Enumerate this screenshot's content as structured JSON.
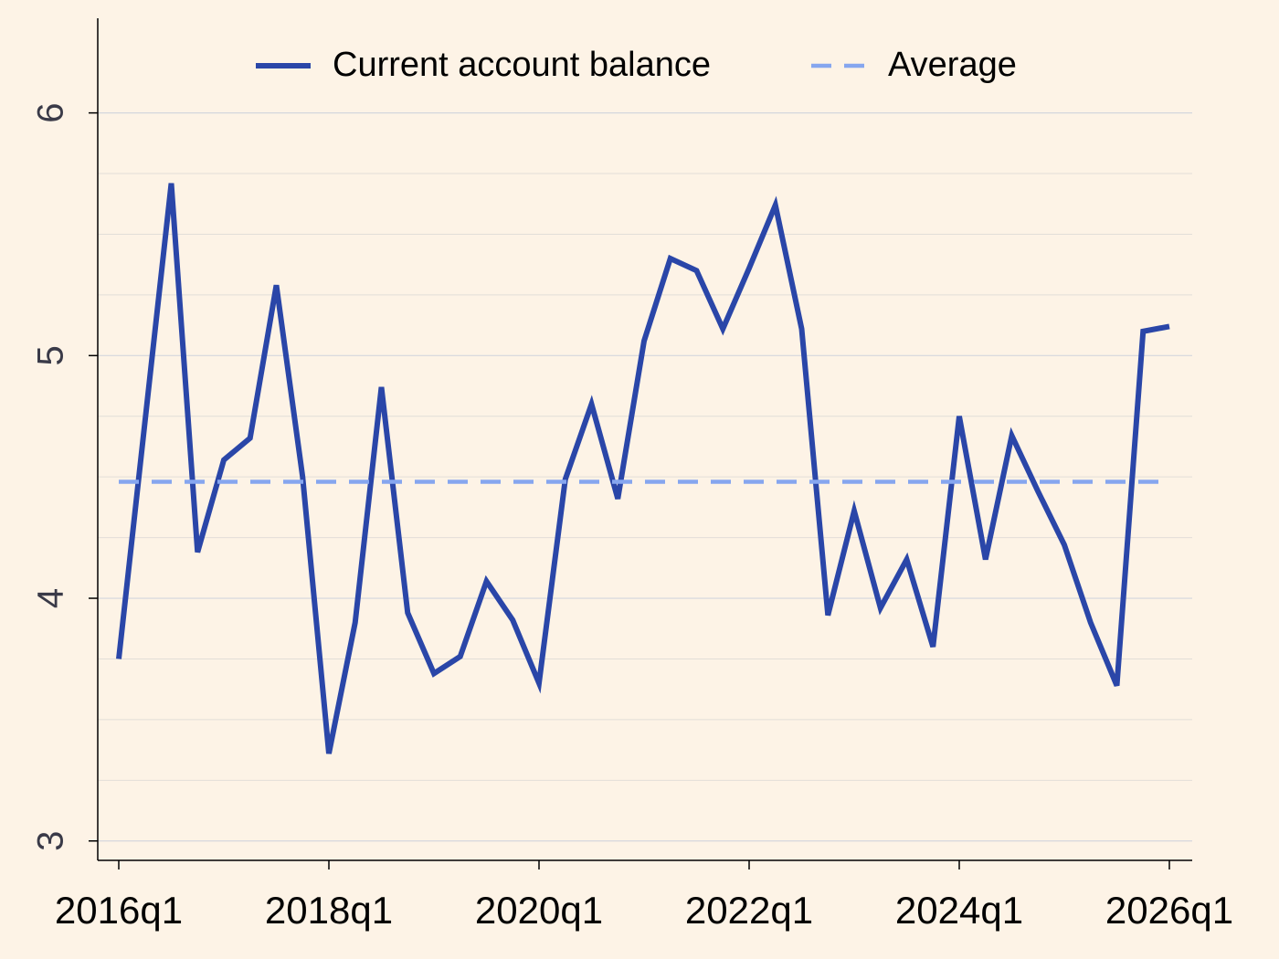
{
  "chart_data": {
    "type": "line",
    "x": [
      "2016q1",
      "2016q2",
      "2016q3",
      "2016q4",
      "2017q1",
      "2017q2",
      "2017q3",
      "2017q4",
      "2018q1",
      "2018q2",
      "2018q3",
      "2018q4",
      "2019q1",
      "2019q2",
      "2019q3",
      "2019q4",
      "2020q1",
      "2020q2",
      "2020q3",
      "2020q4",
      "2021q1",
      "2021q2",
      "2021q3",
      "2021q4",
      "2022q1",
      "2022q2",
      "2022q3",
      "2022q4",
      "2023q1",
      "2023q2",
      "2023q3",
      "2023q4",
      "2024q1",
      "2024q2",
      "2024q3",
      "2024q4",
      "2025q1",
      "2025q2",
      "2025q3",
      "2025q4",
      "2026q1"
    ],
    "series": [
      {
        "name": "Current account balance",
        "color": "#2a46a8",
        "values": [
          3.75,
          4.73,
          5.71,
          4.19,
          4.57,
          4.66,
          5.29,
          4.5,
          3.36,
          3.9,
          4.87,
          3.94,
          3.69,
          3.76,
          4.07,
          3.91,
          3.65,
          4.49,
          4.8,
          4.41,
          5.06,
          5.4,
          5.35,
          5.11,
          5.36,
          5.62,
          5.11,
          3.93,
          4.36,
          3.96,
          4.16,
          3.8,
          4.75,
          4.16,
          4.67,
          4.44,
          4.22,
          3.9,
          3.64,
          5.1,
          5.12
        ]
      },
      {
        "name": "Average",
        "color": "#86a6ef",
        "dashed": true,
        "value": 4.48
      }
    ],
    "xticks": [
      "2016q1",
      "2018q1",
      "2020q1",
      "2022q1",
      "2024q1",
      "2026q1"
    ],
    "ylim": [
      2.92,
      6.39
    ],
    "yticks": [
      3,
      4,
      5,
      6
    ],
    "yticks_minor": [
      3.25,
      3.5,
      3.75,
      4.25,
      4.5,
      4.75,
      5.25,
      5.5,
      5.75
    ],
    "grid": true,
    "legend": "top"
  }
}
